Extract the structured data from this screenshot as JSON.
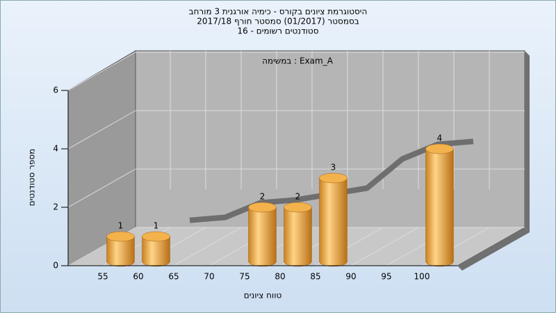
{
  "chart_data": {
    "type": "bar3d",
    "title": "היסטוגרמת ציונים בקורס - כימיה אורגנית 3 מורחב",
    "subtitle": "בסמסטר  (01/2017)  סמסטר חורף 2017/18",
    "subtitle2": "סטודנטים רשומים - 16",
    "annotation": "במשימה : Exam_A",
    "x_label": "טווח ציונים",
    "y_label": "מספר סטודנטים",
    "categories": [
      "55",
      "60",
      "65",
      "70",
      "75",
      "80",
      "85",
      "90",
      "95",
      "100"
    ],
    "values": [
      1,
      1,
      0,
      0,
      2,
      2,
      3,
      0,
      0,
      4
    ],
    "value_labels": [
      "1",
      "1",
      null,
      null,
      "2",
      "2",
      "3",
      null,
      null,
      "4"
    ],
    "trend": [
      null,
      0.9,
      1.0,
      1.5,
      1.6,
      1.8,
      2.0,
      3.0,
      3.5,
      3.6
    ],
    "color": "#e8a640",
    "trend_color": "#6e6e6e",
    "ylim": [
      0,
      6
    ],
    "yticks": [
      0,
      2,
      4,
      6
    ],
    "grid": true
  }
}
